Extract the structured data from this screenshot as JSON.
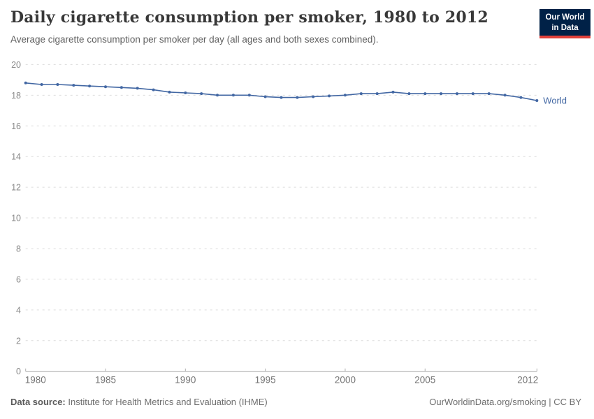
{
  "header": {
    "title": "Daily cigarette consumption per smoker, 1980 to 2012",
    "subtitle": "Average cigarette consumption per smoker per day (all ages and both sexes combined).",
    "logo": {
      "line1": "Our World",
      "line2": "in Data",
      "bg_color": "#002147",
      "accent_color": "#E0403A"
    }
  },
  "chart_data": {
    "type": "line",
    "title": "Daily cigarette consumption per smoker, 1980 to 2012",
    "xlabel": "",
    "ylabel": "",
    "xlim": [
      1980,
      2012
    ],
    "ylim": [
      0,
      20
    ],
    "x_ticks": [
      1980,
      1985,
      1990,
      1995,
      2000,
      2005,
      2012
    ],
    "y_ticks": [
      0,
      2,
      4,
      6,
      8,
      10,
      12,
      14,
      16,
      18,
      20
    ],
    "grid": "horizontal-dashed",
    "legend": "end-of-line-label",
    "x": [
      1980,
      1981,
      1982,
      1983,
      1984,
      1985,
      1986,
      1987,
      1988,
      1989,
      1990,
      1991,
      1992,
      1993,
      1994,
      1995,
      1996,
      1997,
      1998,
      1999,
      2000,
      2001,
      2002,
      2003,
      2004,
      2005,
      2006,
      2007,
      2008,
      2009,
      2010,
      2011,
      2012
    ],
    "series": [
      {
        "name": "World",
        "color": "#4267A3",
        "values": [
          18.8,
          18.7,
          18.7,
          18.65,
          18.6,
          18.55,
          18.5,
          18.45,
          18.35,
          18.2,
          18.15,
          18.1,
          18.0,
          18.0,
          18.0,
          17.9,
          17.85,
          17.85,
          17.9,
          17.95,
          18.0,
          18.1,
          18.1,
          18.2,
          18.1,
          18.1,
          18.1,
          18.1,
          18.1,
          18.1,
          18.0,
          17.85,
          17.65
        ]
      }
    ],
    "end_label": "World"
  },
  "footer": {
    "source_label": "Data source:",
    "source_text": " Institute for Health Metrics and Evaluation (IHME)",
    "credit": "OurWorldinData.org/smoking | CC BY"
  }
}
